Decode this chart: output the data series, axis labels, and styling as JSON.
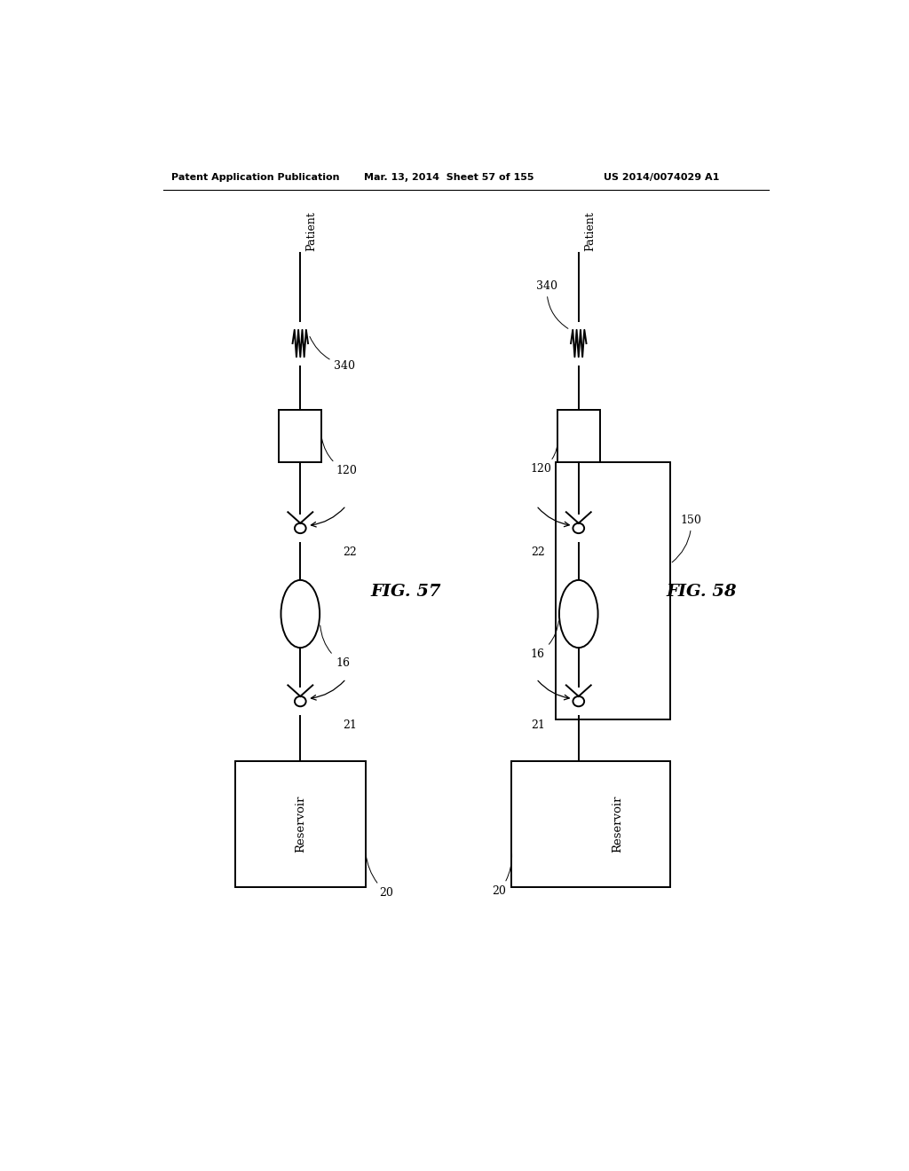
{
  "bg_color": "#ffffff",
  "header_text": "Patent Application Publication",
  "header_date": "Mar. 13, 2014  Sheet 57 of 155",
  "header_patent": "US 2014/0074029 A1",
  "fig57_label": "FIG. 57",
  "fig58_label": "FIG. 58"
}
